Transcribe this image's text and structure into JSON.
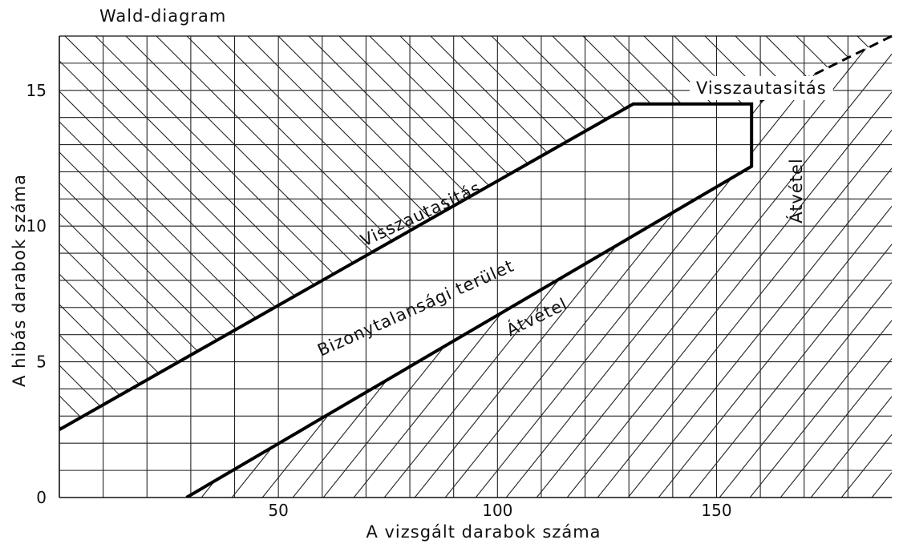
{
  "chart_data": {
    "type": "line",
    "title": "Wald-diagram",
    "xlabel": "A vizsgált darabok száma",
    "ylabel": "A hibás darabok száma",
    "xlim": [
      0,
      190
    ],
    "ylim": [
      0,
      17
    ],
    "x_ticks": [
      50,
      100,
      150
    ],
    "y_ticks": [
      0,
      5,
      10,
      15
    ],
    "grid": true,
    "series": [
      {
        "points": [
          [
            0,
            2.5
          ],
          [
            131,
            14.5
          ],
          [
            158,
            14.5
          ],
          [
            158,
            12.2
          ],
          [
            29,
            0
          ]
        ]
      },
      {
        "points": [
          [
            160,
            14.6
          ],
          [
            190,
            17.0
          ]
        ],
        "dashed": true
      }
    ],
    "annotations": [
      "Visszautasitás",
      "Visszautasitás",
      "Bizonytalansági terület",
      "Átvétel",
      "Átvétel"
    ]
  }
}
